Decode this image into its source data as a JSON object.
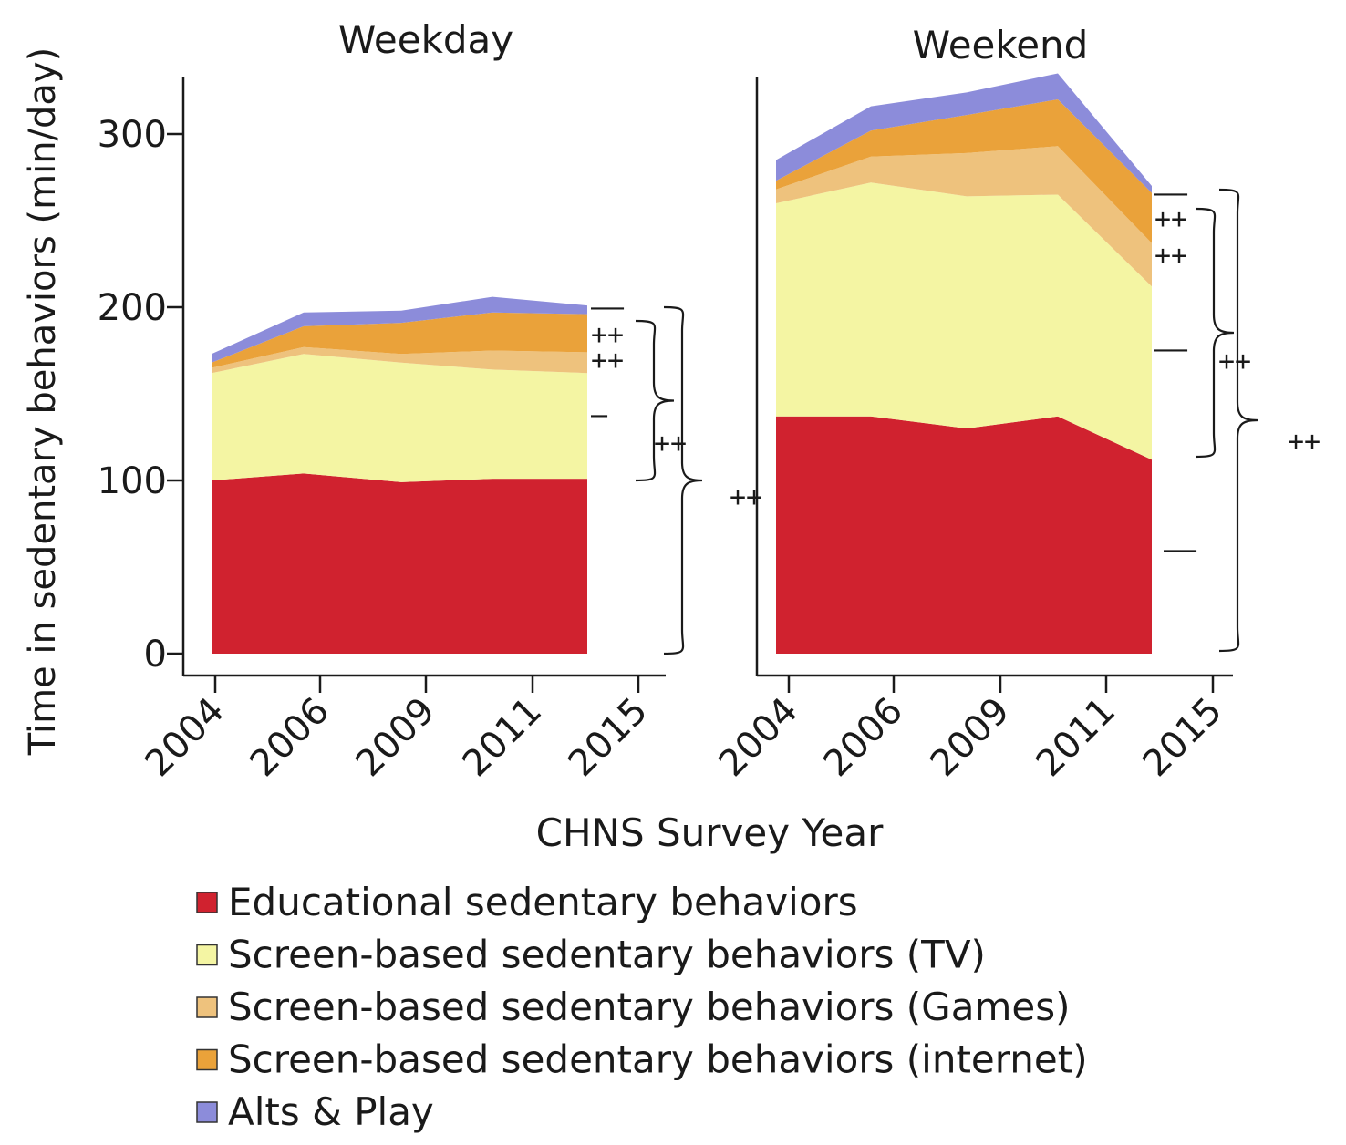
{
  "chart_data": {
    "type": "area",
    "stacked": true,
    "ylabel": "Time in sedentary behaviors (min/day)",
    "xlabel": "CHNS Survey Year",
    "x_categories": [
      "2004",
      "2006",
      "2009",
      "2011",
      "2015"
    ],
    "ylim": [
      0,
      335
    ],
    "yticks": [
      0,
      100,
      200,
      300
    ],
    "legend_position": "bottom",
    "series": [
      {
        "name": "Educational sedentary behaviors",
        "color": "#d0222f"
      },
      {
        "name": "Screen-based sedentary behaviors (TV)",
        "color": "#f4f5a3"
      },
      {
        "name": "Screen-based sedentary behaviors (Games)",
        "color": "#eec27d"
      },
      {
        "name": "Screen-based sedentary behaviors (internet)",
        "color": "#eaa23a"
      },
      {
        "name": "Alts & Play",
        "color": "#8c8cda"
      }
    ],
    "panels": [
      {
        "title": "Weekday",
        "values": {
          "Educational sedentary behaviors": [
            100,
            104,
            99,
            101,
            101
          ],
          "Screen-based sedentary behaviors (TV)": [
            62,
            69,
            69,
            63,
            61
          ],
          "Screen-based sedentary behaviors (Games)": [
            3,
            4,
            5,
            11,
            12
          ],
          "Screen-based sedentary behaviors (internet)": [
            3,
            12,
            18,
            22,
            22
          ],
          "Alts & Play": [
            5,
            8,
            7,
            9,
            5
          ]
        },
        "significance": [
          {
            "series": "Alts & Play",
            "label": "——"
          },
          {
            "series": "Screen-based sedentary behaviors (internet)",
            "label": "++"
          },
          {
            "series": "Screen-based sedentary behaviors (Games)",
            "label": "++"
          },
          {
            "series": "Screen-based sedentary behaviors (TV)",
            "label": "—"
          },
          {
            "group": "screen-based total",
            "label": "++"
          },
          {
            "group": "total",
            "label": "++"
          }
        ]
      },
      {
        "title": "Weekend",
        "values": {
          "Educational sedentary behaviors": [
            137,
            137,
            130,
            137,
            112
          ],
          "Screen-based sedentary behaviors (TV)": [
            123,
            135,
            134,
            128,
            100
          ],
          "Screen-based sedentary behaviors (Games)": [
            8,
            15,
            25,
            28,
            25
          ],
          "Screen-based sedentary behaviors (internet)": [
            5,
            15,
            22,
            27,
            29
          ],
          "Alts & Play": [
            12,
            14,
            13,
            15,
            4
          ]
        },
        "significance": [
          {
            "series": "Alts & Play",
            "label": "——"
          },
          {
            "series": "Screen-based sedentary behaviors (internet)",
            "label": "++"
          },
          {
            "series": "Screen-based sedentary behaviors (Games)",
            "label": "++"
          },
          {
            "series": "Screen-based sedentary behaviors (TV)",
            "label": "——"
          },
          {
            "series": "Educational sedentary behaviors",
            "label": "——"
          },
          {
            "group": "screen-based total",
            "label": "++"
          },
          {
            "group": "total",
            "label": "++"
          }
        ]
      }
    ]
  }
}
